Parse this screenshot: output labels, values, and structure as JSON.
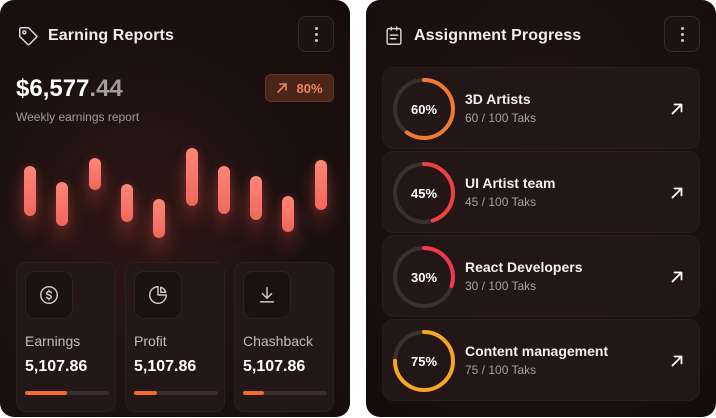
{
  "earning": {
    "title": "Earning Reports",
    "amount_main": "$6,577",
    "amount_decimal": ".44",
    "subtitle": "Weekly earnings report",
    "growth": "80%",
    "icons": {
      "header": "tag-icon",
      "growth": "arrow-up-right-icon",
      "menu": "more-vertical-icon"
    },
    "bars": [
      {
        "top": 0.2,
        "bottom": 0.7
      },
      {
        "top": 0.36,
        "bottom": 0.8
      },
      {
        "top": 0.12,
        "bottom": 0.44
      },
      {
        "top": 0.38,
        "bottom": 0.76
      },
      {
        "top": 0.53,
        "bottom": 0.92
      },
      {
        "top": 0.02,
        "bottom": 0.6
      },
      {
        "top": 0.2,
        "bottom": 0.68
      },
      {
        "top": 0.3,
        "bottom": 0.74
      },
      {
        "top": 0.5,
        "bottom": 0.86
      },
      {
        "top": 0.14,
        "bottom": 0.64
      }
    ],
    "stats": [
      {
        "label": "Earnings",
        "value": "5,107.86",
        "progress": 0.5,
        "icon": "dollar-circle-icon"
      },
      {
        "label": "Profit",
        "value": "5,107.86",
        "progress": 0.27,
        "icon": "pie-chart-icon"
      },
      {
        "label": "Chashback",
        "value": "5,107.86",
        "progress": 0.25,
        "icon": "download-icon"
      }
    ],
    "colors": {
      "bar": "#f06a5e",
      "accent": "#f06a2a"
    }
  },
  "assignment": {
    "title": "Assignment Progress",
    "icons": {
      "header": "clipboard-icon",
      "menu": "more-vertical-icon",
      "row": "arrow-up-right-icon"
    },
    "items": [
      {
        "pct_label": "60%",
        "pct": 0.6,
        "name": "3D Artists",
        "tasks": "60 / 100 Taks",
        "color": "#f07a2e"
      },
      {
        "pct_label": "45%",
        "pct": 0.45,
        "name": "UI Artist team",
        "tasks": "45 / 100 Taks",
        "color": "#f04040"
      },
      {
        "pct_label": "30%",
        "pct": 0.3,
        "name": "React Developers",
        "tasks": "30 / 100 Taks",
        "color": "#f0384a"
      },
      {
        "pct_label": "75%",
        "pct": 0.75,
        "name": "Content management",
        "tasks": "75 / 100 Taks",
        "color": "#f5a623"
      }
    ]
  }
}
